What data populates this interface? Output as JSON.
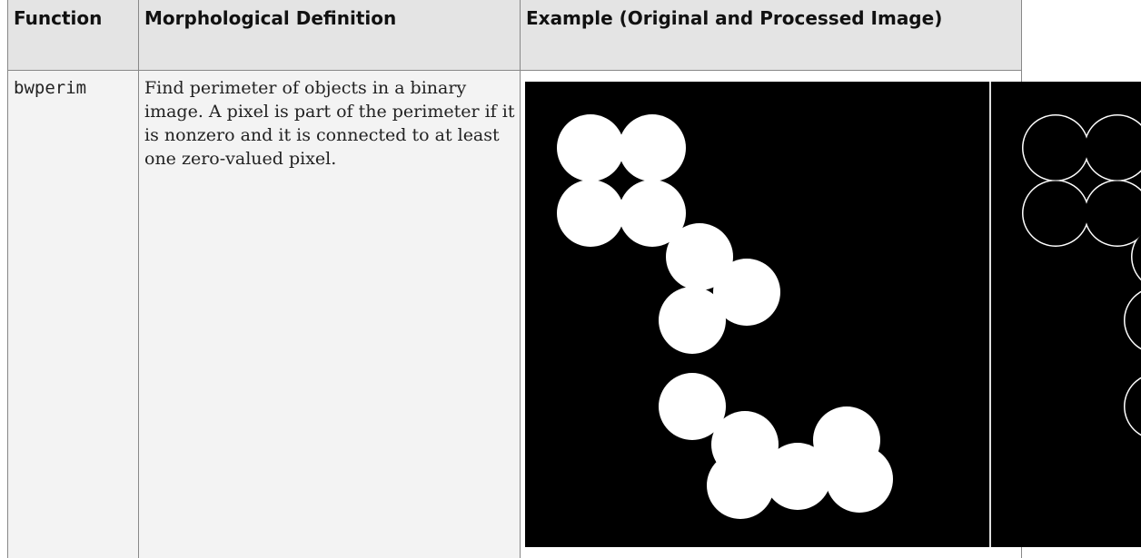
{
  "table": {
    "header": [
      "Function",
      "Morphological Definition",
      "Example (Original and Processed Image)"
    ],
    "rows": [
      [
        "bwperim",
        "Find perimeter of objects in a binary image. A pixel is part of the perimeter if it is nonzero and it is connected to at least one zero-valued pixel."
      ]
    ]
  }
}
